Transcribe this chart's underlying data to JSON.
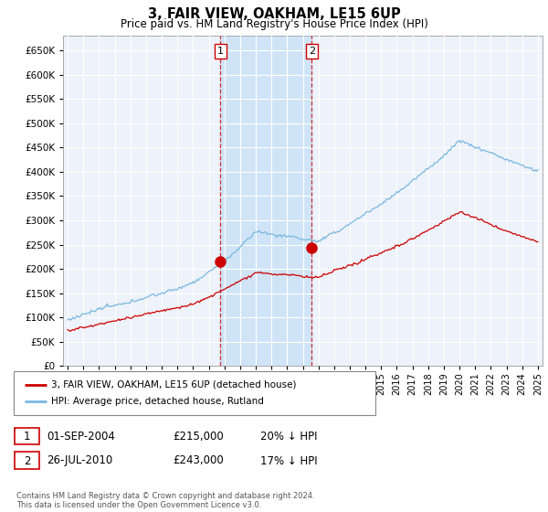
{
  "title": "3, FAIR VIEW, OAKHAM, LE15 6UP",
  "subtitle": "Price paid vs. HM Land Registry's House Price Index (HPI)",
  "ylim": [
    0,
    680000
  ],
  "ytick_values": [
    0,
    50000,
    100000,
    150000,
    200000,
    250000,
    300000,
    350000,
    400000,
    450000,
    500000,
    550000,
    600000,
    650000
  ],
  "bg_color": "#eef2fa",
  "grid_color": "#ffffff",
  "shade_color": "#d0e4f7",
  "line_color_hpi": "#7ab8e0",
  "line_color_price": "#cc0000",
  "sale1_date": 2004.75,
  "sale1_price": 215000,
  "sale2_date": 2010.58,
  "sale2_price": 243000,
  "legend_label_price": "3, FAIR VIEW, OAKHAM, LE15 6UP (detached house)",
  "legend_label_hpi": "HPI: Average price, detached house, Rutland",
  "annotation1_label": "1",
  "annotation1_date": "01-SEP-2004",
  "annotation1_price": "£215,000",
  "annotation1_pct": "20% ↓ HPI",
  "annotation2_label": "2",
  "annotation2_date": "26-JUL-2010",
  "annotation2_price": "£243,000",
  "annotation2_pct": "17% ↓ HPI",
  "footer": "Contains HM Land Registry data © Crown copyright and database right 2024.\nThis data is licensed under the Open Government Licence v3.0."
}
